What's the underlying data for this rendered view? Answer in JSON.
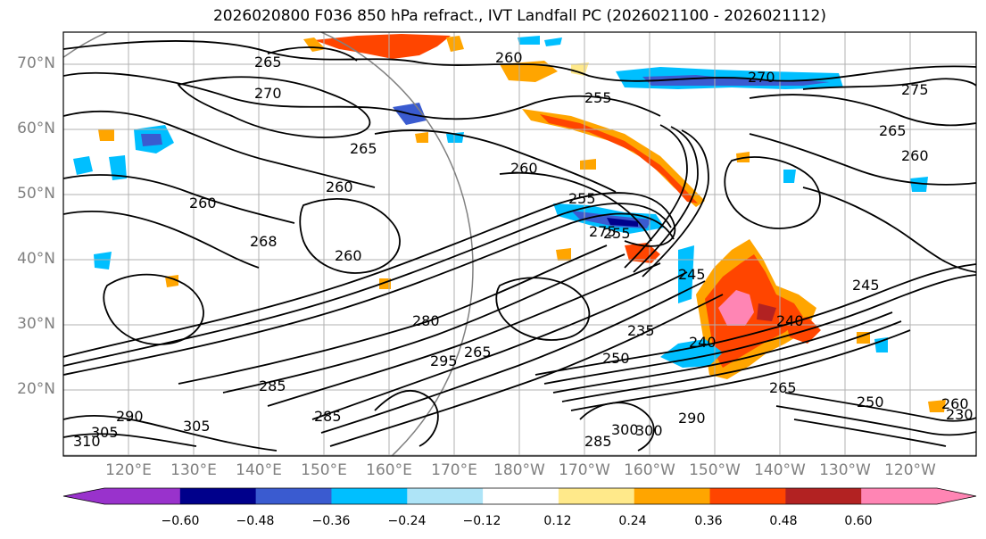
{
  "title": "2026020800 F036 850 hPa refract., IVT Landfall PC (2026021100 - 2026021112)",
  "lat_labels": [
    "70°N",
    "60°N",
    "50°N",
    "40°N",
    "30°N",
    "20°N"
  ],
  "lon_labels": [
    "120°E",
    "130°E",
    "140°E",
    "150°E",
    "160°E",
    "170°E",
    "180°W",
    "170°W",
    "160°W",
    "150°W",
    "140°W",
    "130°W",
    "120°W"
  ],
  "colorbar": {
    "colors": [
      "#9932cc",
      "#00008b",
      "#3a5bd0",
      "#00bfff",
      "#aee4f7",
      "#ffffff",
      "#ffe98a",
      "#ffa500",
      "#ff4500",
      "#b22222",
      "#ff85b4"
    ],
    "tick_labels": [
      "−0.60",
      "−0.48",
      "−0.36",
      "−0.24",
      "−0.12",
      "0.12",
      "0.24",
      "0.36",
      "0.48",
      "0.60"
    ]
  },
  "contour_labels": [
    "265",
    "260",
    "255",
    "270",
    "275",
    "265",
    "260",
    "255",
    "260",
    "265",
    "260",
    "268",
    "260",
    "245",
    "245",
    "235",
    "240",
    "250",
    "280",
    "295",
    "285",
    "285",
    "300",
    "305",
    "310",
    "290",
    "265",
    "250",
    "260",
    "270",
    "255",
    "290",
    "285",
    "300",
    "305",
    "275",
    "265",
    "260",
    "240",
    "230"
  ]
}
